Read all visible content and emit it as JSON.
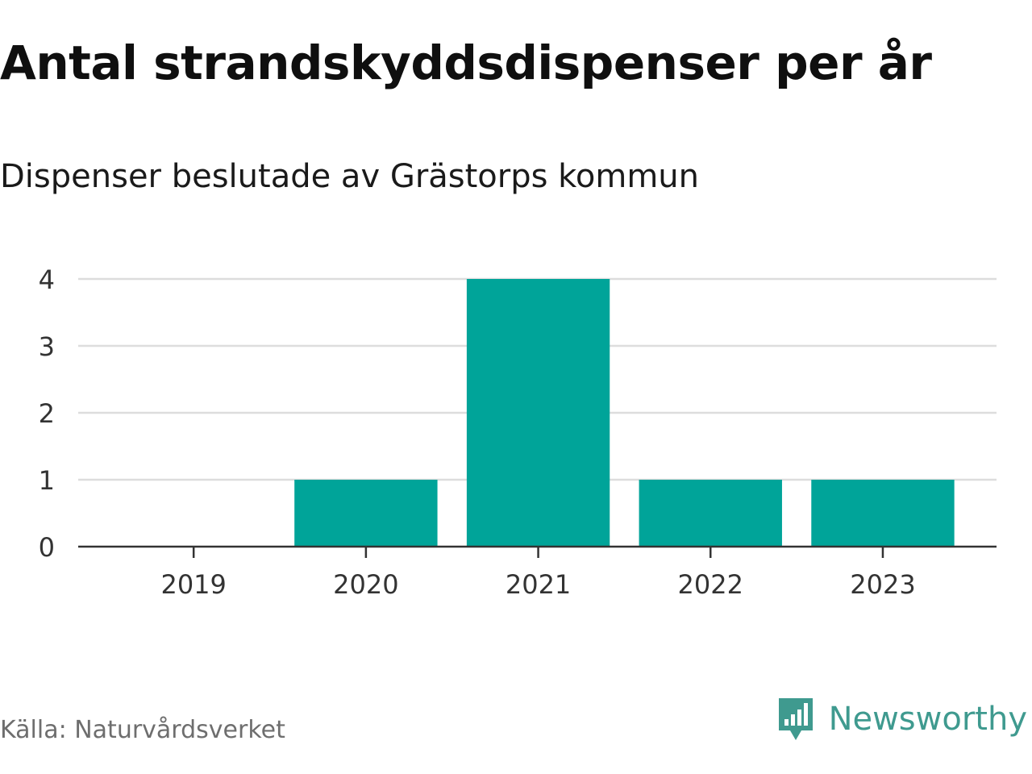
{
  "title": "Antal strandskyddsdispenser per år",
  "subtitle": "Dispenser beslutade av Grästorps kommun",
  "source": "Källa: Naturvårdsverket",
  "brand": {
    "name": "Newsworthy",
    "icon": "newsworthy-logo-icon",
    "color": "#3f9a8f"
  },
  "colors": {
    "bar": "#00a499",
    "grid": "#dddddd",
    "axis": "#333333"
  },
  "chart_data": {
    "type": "bar",
    "categories": [
      "2019",
      "2020",
      "2021",
      "2022",
      "2023"
    ],
    "values": [
      0,
      1,
      4,
      1,
      1
    ],
    "title": "Antal strandskyddsdispenser per år",
    "subtitle": "Dispenser beslutade av Grästorps kommun",
    "xlabel": "",
    "ylabel": "",
    "ylim": [
      0,
      4
    ],
    "yticks": [
      0,
      1,
      2,
      3,
      4
    ],
    "grid": true,
    "legend": "none"
  }
}
